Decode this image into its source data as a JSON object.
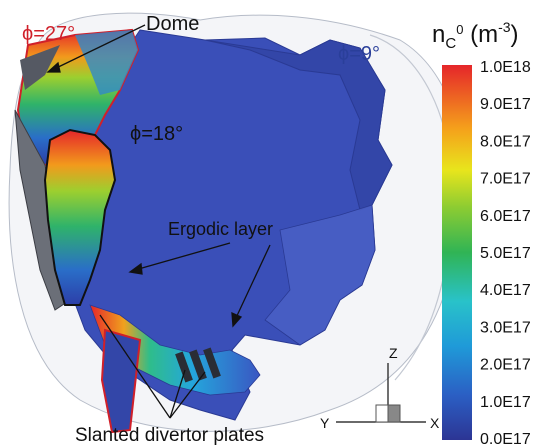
{
  "labels": {
    "dome": "Dome",
    "phi27": "ϕ=27°",
    "phi18": "ϕ=18°",
    "phi9": "ϕ=9°",
    "ergodic": "Ergodic layer",
    "divertor": "Slanted divertor plates"
  },
  "colorbar": {
    "title_main": "n",
    "title_sub": "C",
    "title_sup": "0",
    "title_unit_open": " (m",
    "title_unit_sup": "-3",
    "title_unit_close": ")",
    "ticks": [
      "1.0E18",
      "9.0E17",
      "8.0E17",
      "7.0E17",
      "6.0E17",
      "5.0E17",
      "4.0E17",
      "3.0E17",
      "2.0E17",
      "1.0E17",
      "0.0E17"
    ]
  },
  "axes": {
    "z": "Z",
    "y": "Y",
    "x": "X"
  },
  "colors": {
    "phi27": "#d0202a",
    "phi9": "#2a3f9a",
    "body_blue": "#3a4fb8"
  }
}
